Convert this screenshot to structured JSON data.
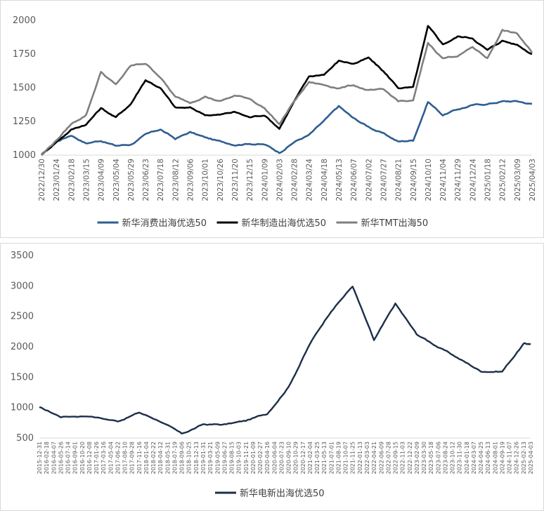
{
  "chart_data": [
    {
      "type": "line",
      "title": "",
      "xlabel": "",
      "ylabel": "",
      "ylim": [
        1000,
        2000
      ],
      "yticks": [
        1000,
        1250,
        1500,
        1750,
        2000
      ],
      "grid": false,
      "legend_position": "bottom",
      "x_tick_labels": [
        "2022/12/30",
        "2023/01/24",
        "2023/02/18",
        "2023/03/15",
        "2023/04/09",
        "2023/05/04",
        "2023/05/29",
        "2023/06/23",
        "2023/07/18",
        "2023/08/12",
        "2023/09/06",
        "2023/10/01",
        "2023/10/26",
        "2023/11/20",
        "2023/12/15",
        "2024/01/09",
        "2024/02/03",
        "2024/02/28",
        "2024/03/24",
        "2024/04/18",
        "2024/05/13",
        "2024/06/07",
        "2024/07/02",
        "2024/07/27",
        "2024/08/21",
        "2024/09/15",
        "2024/10/10",
        "2024/11/04",
        "2024/11/29",
        "2024/12/24",
        "2025/01/18",
        "2025/02/12",
        "2025/03/09",
        "2025/04/03"
      ],
      "x": [
        "2022-12-30",
        "2023-01-24",
        "2023-02-18",
        "2023-03-15",
        "2023-04-09",
        "2023-05-04",
        "2023-05-29",
        "2023-06-23",
        "2023-07-18",
        "2023-08-12",
        "2023-09-06",
        "2023-10-01",
        "2023-10-26",
        "2023-11-20",
        "2023-12-15",
        "2024-01-09",
        "2024-02-03",
        "2024-02-28",
        "2024-03-24",
        "2024-04-18",
        "2024-05-13",
        "2024-06-07",
        "2024-07-02",
        "2024-07-27",
        "2024-08-21",
        "2024-09-15",
        "2024-10-10",
        "2024-11-04",
        "2024-11-29",
        "2024-12-24",
        "2025-01-18",
        "2025-02-12",
        "2025-03-09",
        "2025-04-03"
      ],
      "series": [
        {
          "name": "新华消费出海优选50",
          "color": "#2e5e91",
          "values": [
            1000,
            1100,
            1150,
            1090,
            1110,
            1070,
            1080,
            1150,
            1190,
            1120,
            1170,
            1130,
            1100,
            1080,
            1090,
            1080,
            1020,
            1100,
            1150,
            1250,
            1360,
            1270,
            1210,
            1160,
            1100,
            1110,
            1400,
            1300,
            1340,
            1370,
            1380,
            1400,
            1400,
            1380
          ]
        },
        {
          "name": "新华制造出海优选50",
          "color": "#000000",
          "values": [
            1000,
            1100,
            1190,
            1230,
            1350,
            1280,
            1380,
            1560,
            1500,
            1350,
            1350,
            1300,
            1300,
            1320,
            1280,
            1300,
            1200,
            1400,
            1580,
            1600,
            1700,
            1680,
            1720,
            1620,
            1500,
            1500,
            1950,
            1820,
            1880,
            1870,
            1780,
            1850,
            1820,
            1750
          ]
        },
        {
          "name": "新华TMT出海50",
          "color": "#7f7f7f",
          "values": [
            1000,
            1110,
            1230,
            1300,
            1620,
            1520,
            1660,
            1680,
            1580,
            1430,
            1390,
            1440,
            1400,
            1440,
            1420,
            1350,
            1230,
            1400,
            1540,
            1520,
            1500,
            1520,
            1480,
            1480,
            1400,
            1400,
            1830,
            1720,
            1740,
            1800,
            1720,
            1930,
            1900,
            1760
          ]
        }
      ]
    },
    {
      "type": "line",
      "title": "",
      "xlabel": "",
      "ylabel": "",
      "ylim": [
        500,
        3500
      ],
      "yticks": [
        500,
        1000,
        1500,
        2000,
        2500,
        3000,
        3500
      ],
      "grid": false,
      "legend_position": "bottom",
      "x_tick_labels": [
        "2015-12-31",
        "2016-02-18",
        "2016-04-07",
        "2016-05-26",
        "2016-07-14",
        "2016-09-01",
        "2016-10-20",
        "2016-12-08",
        "2017-01-26",
        "2017-03-16",
        "2017-05-04",
        "2017-06-22",
        "2017-08-10",
        "2017-09-28",
        "2017-11-16",
        "2018-01-04",
        "2018-02-22",
        "2018-04-12",
        "2018-05-31",
        "2018-07-19",
        "2018-09-06",
        "2018-10-25",
        "2018-12-13",
        "2019-01-31",
        "2019-03-21",
        "2019-05-09",
        "2019-06-27",
        "2019-08-15",
        "2019-10-03",
        "2019-11-21",
        "2020-01-09",
        "2020-02-27",
        "2020-04-16",
        "2020-06-04",
        "2020-07-23",
        "2020-09-10",
        "2020-10-29",
        "2020-12-17",
        "2021-02-04",
        "2021-03-25",
        "2021-05-13",
        "2021-07-01",
        "2021-08-19",
        "2021-10-07",
        "2021-11-25",
        "2022-01-13",
        "2022-03-03",
        "2022-04-21",
        "2022-06-09",
        "2022-07-28",
        "2022-09-15",
        "2022-11-03",
        "2022-12-22",
        "2023-02-09",
        "2023-03-30",
        "2023-05-18",
        "2023-07-06",
        "2023-08-24",
        "2023-10-12",
        "2023-11-30",
        "2024-01-18",
        "2024-03-07",
        "2024-04-25",
        "2024-06-13",
        "2024-08-01",
        "2024-09-19",
        "2024-11-07",
        "2024-12-26",
        "2025-02-13",
        "2025-04-03"
      ],
      "x": [
        "2015-12-31",
        "2016-05-26",
        "2016-12-08",
        "2017-06-22",
        "2017-11-16",
        "2018-04-12",
        "2018-09-06",
        "2019-01-31",
        "2019-06-27",
        "2019-11-21",
        "2020-04-16",
        "2020-09-10",
        "2021-02-04",
        "2021-07-01",
        "2021-11-25",
        "2022-04-21",
        "2022-09-15",
        "2023-02-09",
        "2023-07-06",
        "2023-11-30",
        "2024-04-25",
        "2024-09-19",
        "2025-02-13",
        "2025-04-03"
      ],
      "series": [
        {
          "name": "新华电新出海优选50",
          "color": "#1c2f4a",
          "values": [
            1000,
            850,
            870,
            780,
            920,
            780,
            560,
            720,
            720,
            780,
            900,
            1350,
            2050,
            2600,
            3000,
            2100,
            2700,
            2200,
            2000,
            1800,
            1600,
            1600,
            2050,
            2050
          ]
        }
      ]
    }
  ]
}
